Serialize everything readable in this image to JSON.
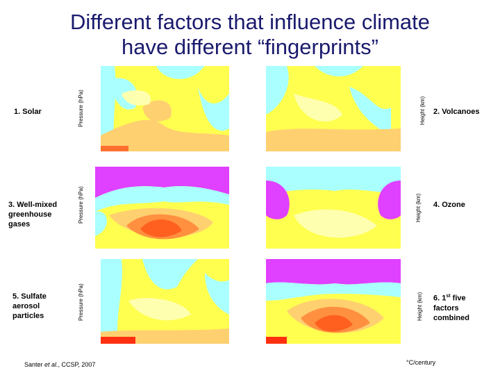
{
  "title": {
    "line1": "Different factors that influence climate",
    "line2": "have different “fingerprints”"
  },
  "panels": [
    {
      "label": "1. Solar",
      "axis_label": "Pressure (hPa)"
    },
    {
      "label": "2. Volcanoes",
      "axis_label": "Height (km)"
    },
    {
      "label": "3. Well-mixed greenhouse gases",
      "axis_label": "Pressure (hPa)"
    },
    {
      "label": "4. Ozone",
      "axis_label": "Height (km)"
    },
    {
      "label": "5. Sulfate aerosol particles",
      "axis_label": "Pressure (hPa)"
    },
    {
      "label_parts": [
        "6. 1",
        "st",
        " five factors combined"
      ],
      "axis_label": "Height (km)"
    }
  ],
  "citation": {
    "author": "Santer ",
    "etal": "et al.",
    "rest": ", CCSP, 2007"
  },
  "units": "°C/century"
}
